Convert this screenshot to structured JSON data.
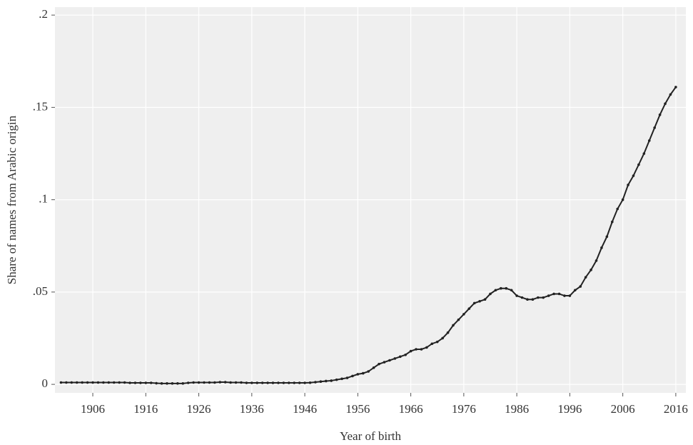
{
  "chart_data": {
    "type": "line",
    "x_label": "Year of birth",
    "y_label": "Share of names from Arabic origin",
    "x": [
      1900,
      1901,
      1902,
      1903,
      1904,
      1905,
      1906,
      1907,
      1908,
      1909,
      1910,
      1911,
      1912,
      1913,
      1914,
      1915,
      1916,
      1917,
      1918,
      1919,
      1920,
      1921,
      1922,
      1923,
      1924,
      1925,
      1926,
      1927,
      1928,
      1929,
      1930,
      1931,
      1932,
      1933,
      1934,
      1935,
      1936,
      1937,
      1938,
      1939,
      1940,
      1941,
      1942,
      1943,
      1944,
      1945,
      1946,
      1947,
      1948,
      1949,
      1950,
      1951,
      1952,
      1953,
      1954,
      1955,
      1956,
      1957,
      1958,
      1959,
      1960,
      1961,
      1962,
      1963,
      1964,
      1965,
      1966,
      1967,
      1968,
      1969,
      1970,
      1971,
      1972,
      1973,
      1974,
      1975,
      1976,
      1977,
      1978,
      1979,
      1980,
      1981,
      1982,
      1983,
      1984,
      1985,
      1986,
      1987,
      1988,
      1989,
      1990,
      1991,
      1992,
      1993,
      1994,
      1995,
      1996,
      1997,
      1998,
      1999,
      2000,
      2001,
      2002,
      2003,
      2004,
      2005,
      2006,
      2007,
      2008,
      2009,
      2010,
      2011,
      2012,
      2013,
      2014,
      2015,
      2016
    ],
    "series": [
      {
        "color": "#222222",
        "values": [
          0.001,
          0.001,
          0.001,
          0.001,
          0.001,
          0.001,
          0.001,
          0.001,
          0.001,
          0.001,
          0.001,
          0.001,
          0.001,
          0.0008,
          0.0008,
          0.0008,
          0.0008,
          0.0008,
          0.0006,
          0.0005,
          0.0005,
          0.0005,
          0.0005,
          0.0005,
          0.0008,
          0.001,
          0.001,
          0.001,
          0.001,
          0.001,
          0.0012,
          0.0012,
          0.001,
          0.001,
          0.001,
          0.0008,
          0.0008,
          0.0008,
          0.0008,
          0.0008,
          0.0008,
          0.0008,
          0.0008,
          0.0008,
          0.0008,
          0.0008,
          0.0008,
          0.0009,
          0.0012,
          0.0015,
          0.0018,
          0.002,
          0.0025,
          0.003,
          0.0035,
          0.0045,
          0.0055,
          0.006,
          0.007,
          0.009,
          0.011,
          0.012,
          0.013,
          0.014,
          0.015,
          0.016,
          0.018,
          0.019,
          0.019,
          0.02,
          0.022,
          0.023,
          0.025,
          0.028,
          0.032,
          0.035,
          0.038,
          0.041,
          0.044,
          0.045,
          0.046,
          0.049,
          0.051,
          0.052,
          0.052,
          0.051,
          0.048,
          0.047,
          0.046,
          0.046,
          0.047,
          0.047,
          0.048,
          0.049,
          0.049,
          0.048,
          0.048,
          0.051,
          0.053,
          0.058,
          0.062,
          0.067,
          0.074,
          0.08,
          0.088,
          0.095,
          0.1,
          0.108,
          0.113,
          0.119,
          0.125,
          0.132,
          0.139,
          0.146,
          0.152,
          0.157,
          0.161
        ]
      }
    ],
    "xlim": [
      1898.86,
      2017.9
    ],
    "ylim": [
      -0.0046,
      0.2043
    ],
    "xticks": [
      1906,
      1916,
      1926,
      1936,
      1946,
      1956,
      1966,
      1976,
      1986,
      1996,
      2006,
      2016
    ],
    "yticks": [
      {
        "value": 0,
        "label": "0"
      },
      {
        "value": 0.05,
        "label": ".05"
      },
      {
        "value": 0.1,
        "label": ".1"
      },
      {
        "value": 0.15,
        "label": ".15"
      },
      {
        "value": 0.2,
        "label": ".2"
      }
    ],
    "grid": true
  }
}
